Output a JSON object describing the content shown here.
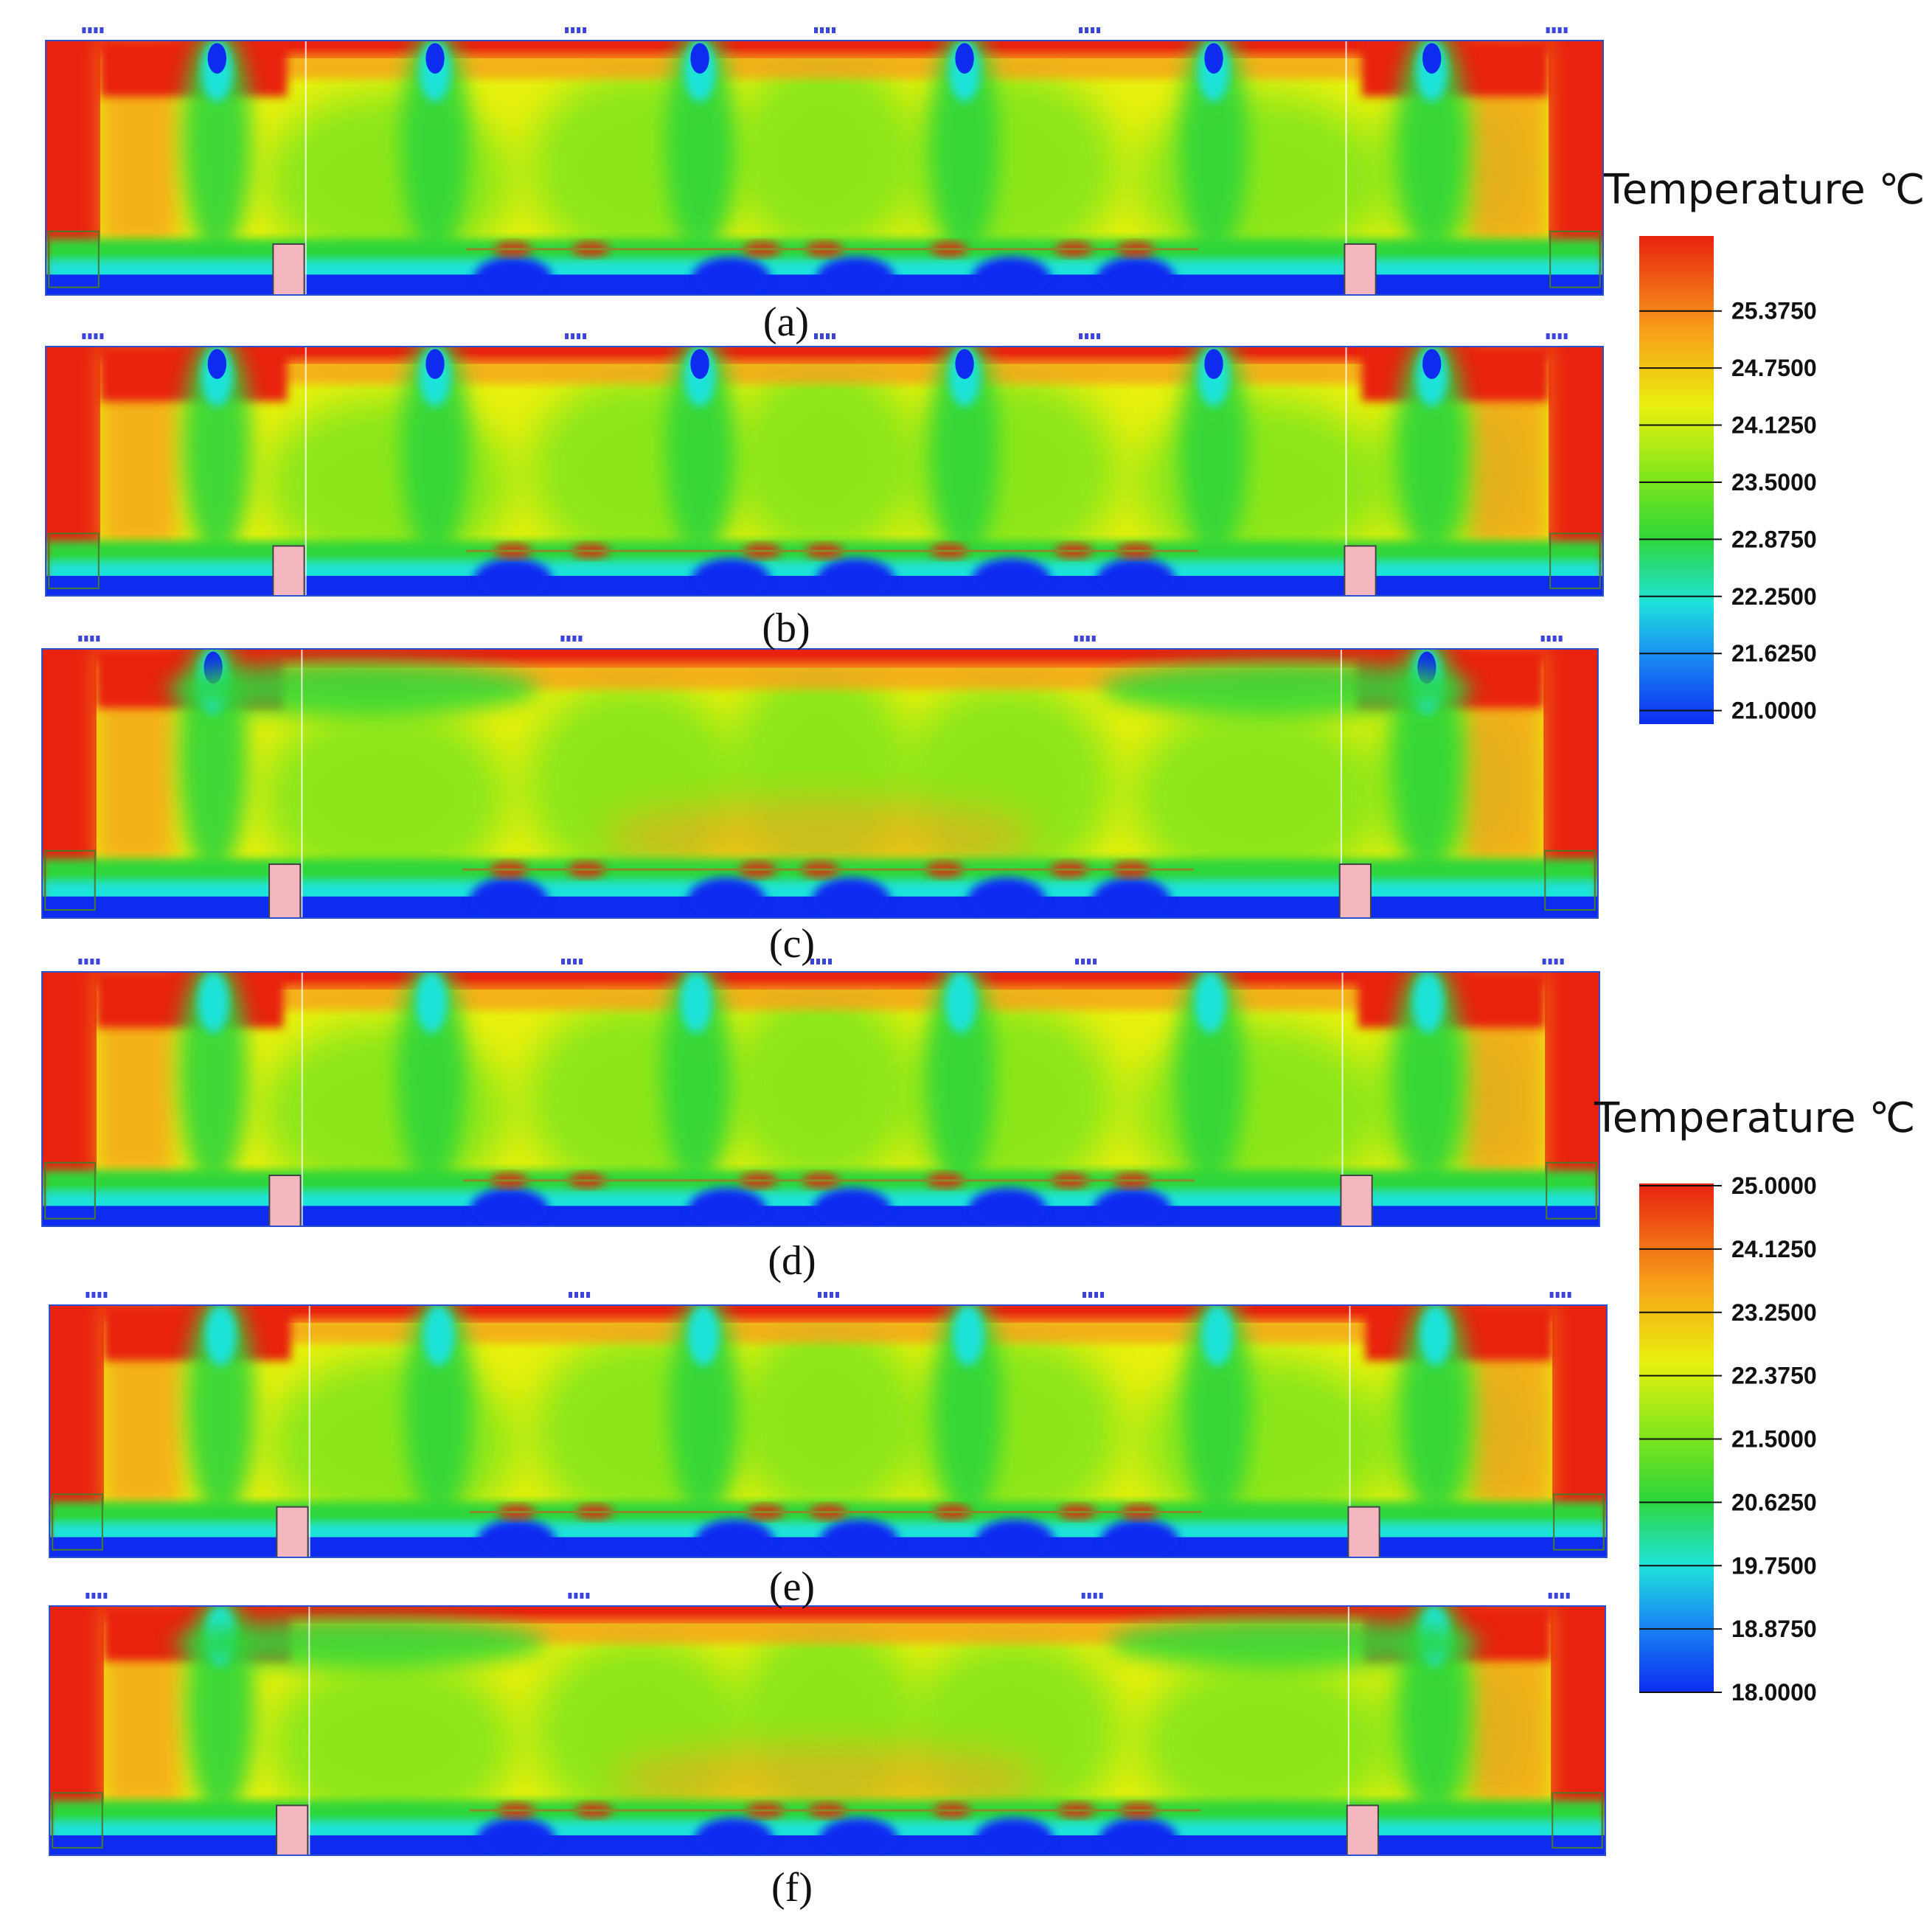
{
  "colors": {
    "hot": "#e8220f",
    "warm": "#f7a21a",
    "mid": "#e9f00e",
    "cool": "#7de51c",
    "green": "#2fd63a",
    "cyan": "#1fe3d9",
    "cold": "#0d2cf0",
    "obstacle": "#f4b7bf",
    "outline": "#4a7a2a"
  },
  "panels": [
    {
      "id": "a",
      "caption": "(a)",
      "variant": "diffusers"
    },
    {
      "id": "b",
      "caption": "(b)",
      "variant": "diffusers"
    },
    {
      "id": "c",
      "caption": "(c)",
      "variant": "side-jets"
    },
    {
      "id": "d",
      "caption": "(d)",
      "variant": "diffusers"
    },
    {
      "id": "e",
      "caption": "(e)",
      "variant": "diffusers"
    },
    {
      "id": "f",
      "caption": "(f)",
      "variant": "side-jets"
    }
  ],
  "legends": [
    {
      "title": "Temperature ℃",
      "ticks": [
        "25.3750",
        "24.7500",
        "24.1250",
        "23.5000",
        "22.8750",
        "22.2500",
        "21.6250",
        "21.0000"
      ]
    },
    {
      "title": "Temperature ℃",
      "ticks": [
        "25.0000",
        "24.1250",
        "23.2500",
        "22.3750",
        "21.5000",
        "20.6250",
        "19.7500",
        "18.8750",
        "18.0000"
      ]
    }
  ]
}
